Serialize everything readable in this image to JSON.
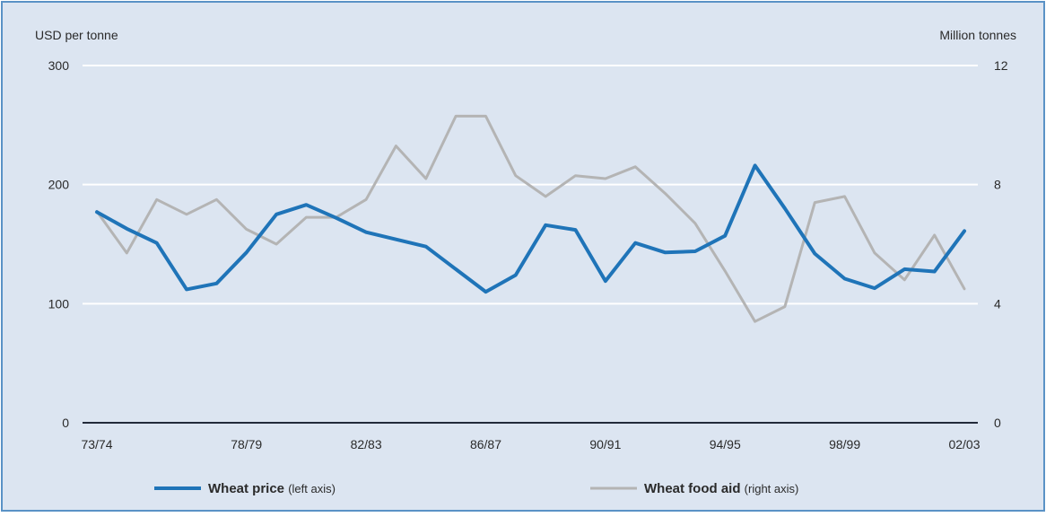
{
  "chart_data": {
    "type": "line",
    "left_axis_label": "USD per tonne",
    "right_axis_label": "Million tonnes",
    "left_ylim": [
      0,
      300
    ],
    "right_ylim": [
      0,
      12
    ],
    "left_ticks": [
      "0",
      "100",
      "200",
      "300"
    ],
    "right_ticks": [
      "0",
      "4",
      "8",
      "12"
    ],
    "x_tick_labels": [
      "73/74",
      "78/79",
      "82/83",
      "86/87",
      "90/91",
      "94/95",
      "98/99",
      "02/03"
    ],
    "x": [
      "73/74",
      "74/75",
      "75/76",
      "76/77",
      "77/78",
      "78/79",
      "79/80",
      "80/81",
      "81/82",
      "82/83",
      "83/84",
      "84/85",
      "85/86",
      "86/87",
      "87/88",
      "88/89",
      "89/90",
      "90/91",
      "91/92",
      "92/93",
      "93/94",
      "94/95",
      "95/96",
      "96/97",
      "97/98",
      "98/99",
      "99/00",
      "00/01",
      "01/02",
      "02/03"
    ],
    "grid": true,
    "legend_position": "bottom",
    "series": [
      {
        "name": "Wheat price",
        "legend_note": "(left axis)",
        "axis": "left",
        "color": "#1f74b8",
        "values": [
          177,
          163,
          151,
          112,
          117,
          143,
          175,
          183,
          172,
          160,
          154,
          148,
          129,
          110,
          124,
          166,
          162,
          119,
          151,
          143,
          144,
          157,
          216,
          180,
          142,
          121,
          113,
          129,
          127,
          161
        ]
      },
      {
        "name": "Wheat food aid",
        "legend_note": "(right axis)",
        "axis": "right",
        "color": "#b4b4b4",
        "values": [
          7.1,
          5.7,
          7.5,
          7.0,
          7.5,
          6.5,
          6.0,
          6.9,
          6.9,
          7.5,
          9.3,
          8.2,
          10.3,
          10.3,
          8.3,
          7.6,
          8.3,
          8.2,
          8.6,
          7.7,
          6.7,
          5.1,
          3.4,
          3.9,
          7.4,
          7.6,
          5.7,
          4.8,
          6.3,
          4.5
        ]
      }
    ]
  }
}
